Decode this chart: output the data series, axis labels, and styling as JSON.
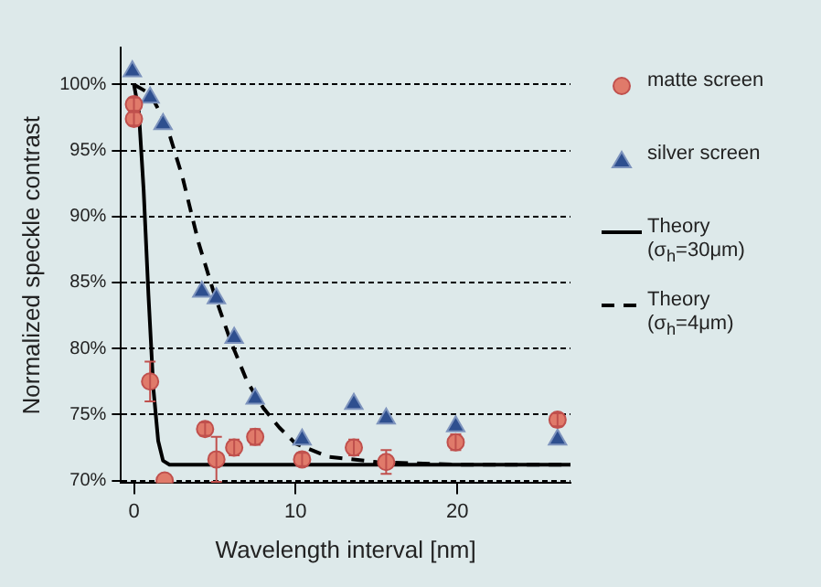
{
  "chart_data": {
    "type": "scatter",
    "xlabel": "Wavelength interval [nm]",
    "ylabel": "Normalized speckle contrast",
    "xlim": [
      -0.8,
      27
    ],
    "xticks": [
      0,
      10,
      20
    ],
    "ylim": [
      69.8,
      102.8
    ],
    "yticks": [
      {
        "value": 70,
        "label": "70%"
      },
      {
        "value": 75,
        "label": "75%"
      },
      {
        "value": 80,
        "label": "80%"
      },
      {
        "value": 85,
        "label": "85%"
      },
      {
        "value": 90,
        "label": "90%"
      },
      {
        "value": 95,
        "label": "95%"
      },
      {
        "value": 100,
        "label": "100%"
      }
    ],
    "grid": "y",
    "legend": "right",
    "series": [
      {
        "name": "matte screen",
        "marker": "circle",
        "color": "#e07a6a",
        "x": [
          0,
          0,
          1.0,
          1.9,
          4.4,
          5.1,
          6.2,
          7.5,
          10.4,
          13.6,
          15.6,
          19.9,
          26.2
        ],
        "values": [
          98.5,
          97.4,
          77.5,
          70.0,
          73.9,
          71.6,
          72.5,
          73.3,
          71.6,
          72.5,
          71.4,
          72.9,
          74.6
        ],
        "errors": [
          0.5,
          0.5,
          1.5,
          null,
          0.5,
          1.7,
          0.6,
          0.6,
          0.5,
          0.6,
          0.9,
          0.6,
          0.5
        ]
      },
      {
        "name": "silver screen",
        "marker": "triangle",
        "color": "#2e4f8f",
        "x": [
          -0.1,
          1.0,
          1.8,
          4.2,
          5.1,
          6.2,
          7.5,
          10.4,
          13.6,
          15.6,
          19.9,
          26.2
        ],
        "values": [
          101.0,
          99.0,
          97.0,
          84.3,
          83.8,
          80.8,
          76.2,
          73.1,
          75.8,
          74.7,
          74.1,
          73.1
        ]
      },
      {
        "name": "Theory (σ$_{h}$=30μm)",
        "type": "line",
        "marker": "none",
        "line_style": "solid",
        "color": "#000000",
        "x": [
          0,
          0.3,
          0.6,
          0.9,
          1.2,
          1.5,
          1.8,
          2.2,
          27
        ],
        "values": [
          100,
          98,
          92,
          84,
          77,
          73,
          71.5,
          71.2,
          71.2
        ]
      },
      {
        "name": "Theory (σ$_{h}$=4μm)",
        "type": "line",
        "marker": "none",
        "line_style": "dashed",
        "color": "#000000",
        "x": [
          0,
          1,
          2,
          3,
          4,
          5,
          6,
          7,
          8,
          9,
          10,
          12,
          15,
          20,
          27
        ],
        "values": [
          100,
          99.3,
          97,
          93,
          88,
          84,
          80.5,
          77.5,
          75.5,
          74,
          72.8,
          71.8,
          71.4,
          71.2,
          71.2
        ]
      }
    ]
  }
}
